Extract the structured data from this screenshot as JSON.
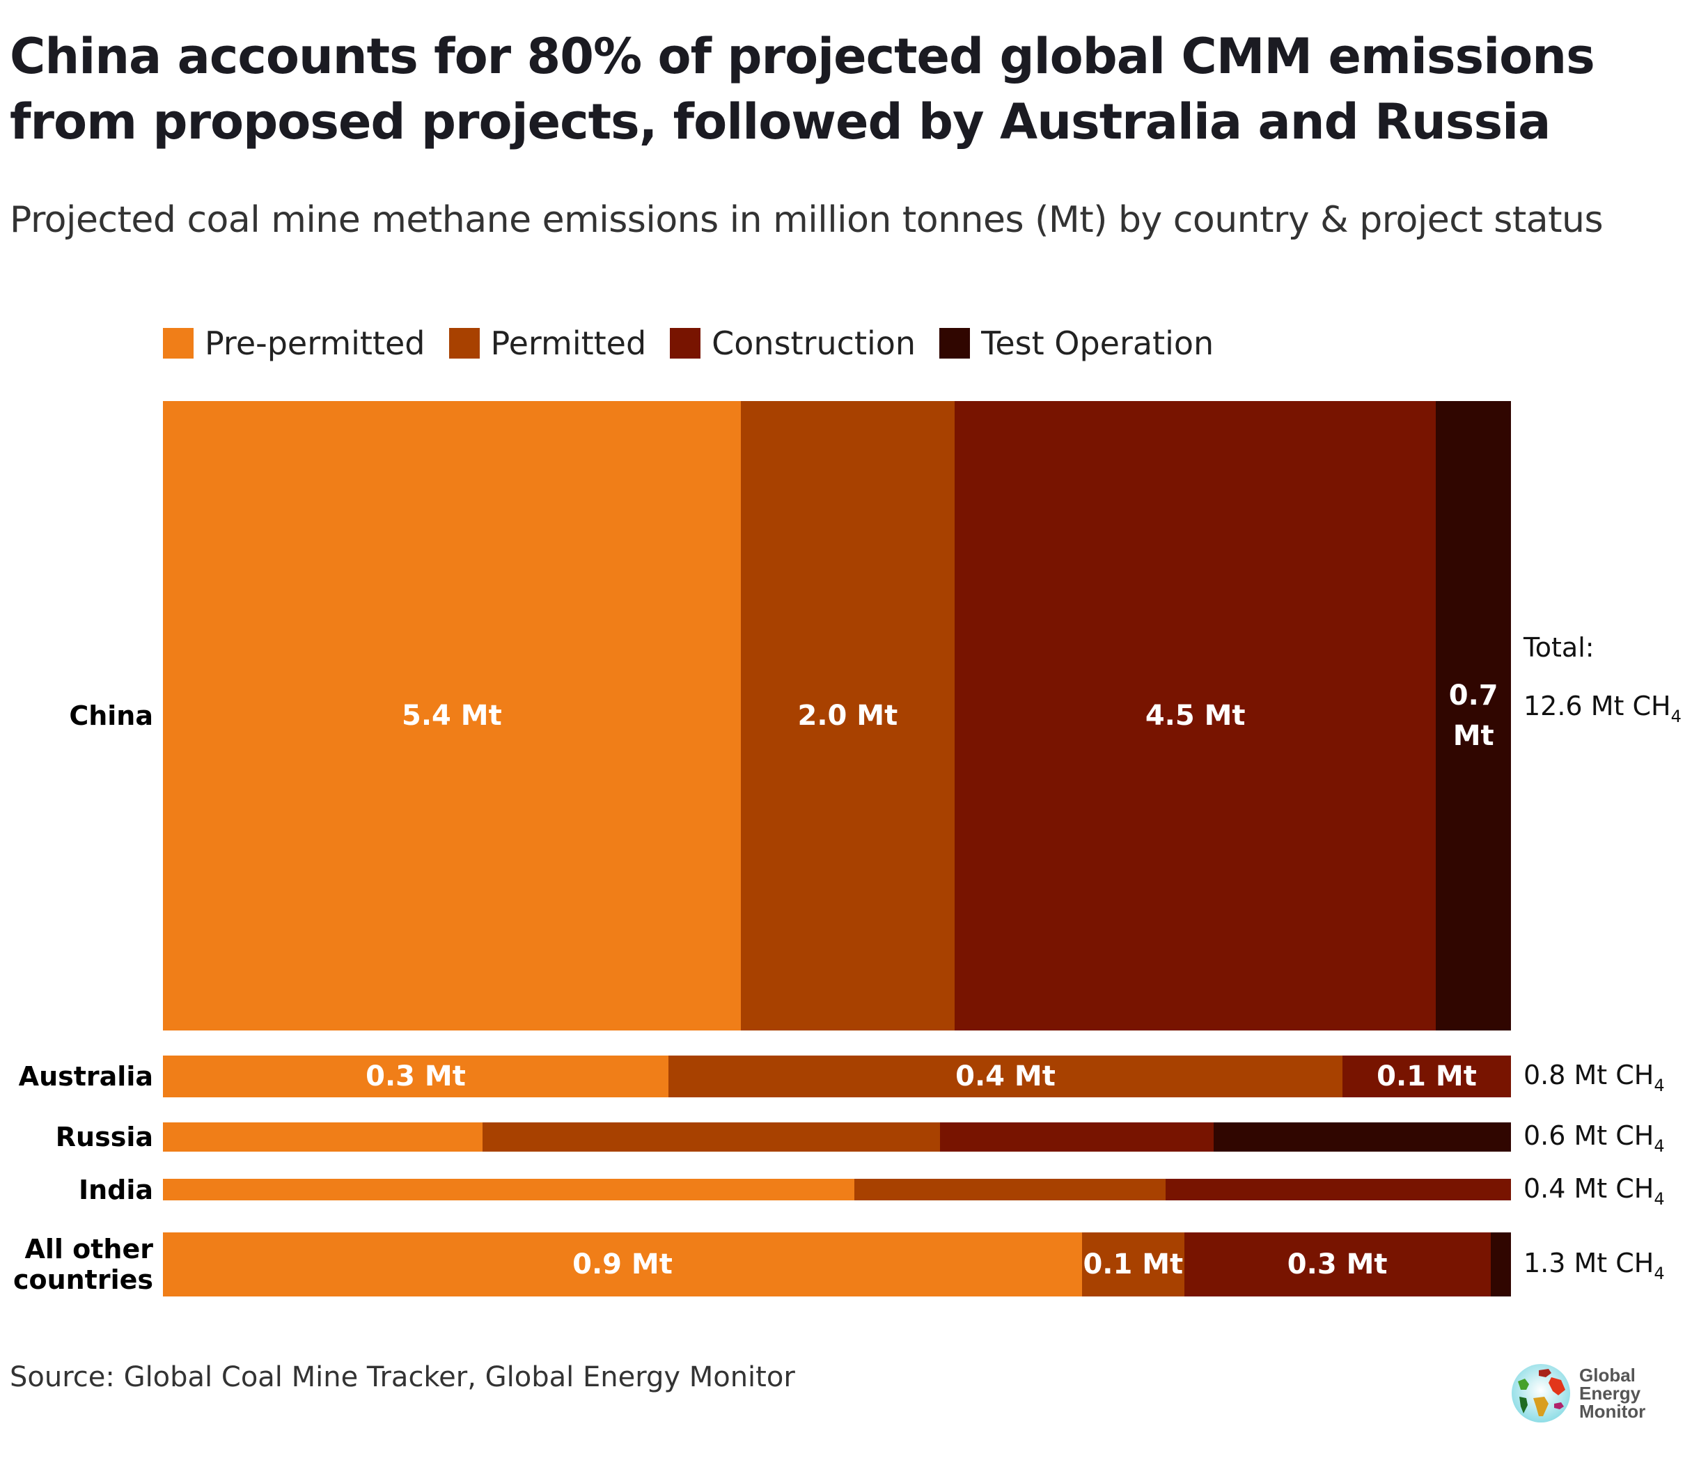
{
  "title": "China accounts for 80% of projected global CMM emissions from proposed projects, followed by Australia and Russia",
  "subtitle": "Projected coal mine methane emissions in million tonnes (Mt) by country & project status",
  "source": "Source: Global Coal Mine Tracker, Global Energy Monitor",
  "logo": {
    "line1": "Global",
    "line2": "Energy",
    "line3": "Monitor"
  },
  "total_prefix": "Total:",
  "chart_data": {
    "type": "bar",
    "orientation": "horizontal",
    "stacked": "100%",
    "note": "Each bar is normalized to 100%; bar thickness proportional to country total",
    "title": "China accounts for 80% of projected global CMM emissions from proposed projects, followed by Australia and Russia",
    "subtitle": "Projected coal mine methane emissions in million tonnes (Mt) by country & project status",
    "unit": "Mt CH4",
    "legend_position": "top-left",
    "categories": [
      "China",
      "Australia",
      "Russia",
      "India",
      "All other countries"
    ],
    "category_labels": [
      "China",
      "Australia",
      "Russia",
      "India",
      "All other\ncountries"
    ],
    "totals": [
      12.6,
      0.8,
      0.6,
      0.4,
      1.3
    ],
    "total_labels": [
      "12.6 Mt CH",
      "0.8 Mt CH",
      "0.6 Mt CH",
      "0.4 Mt CH",
      "1.3 Mt CH"
    ],
    "series": [
      {
        "name": "Pre-permitted",
        "color": "#f07e18",
        "values": [
          5.4,
          0.3,
          0.14,
          0.2,
          0.9
        ],
        "labels": [
          "5.4 Mt",
          "0.3 Mt",
          "",
          "",
          "0.9 Mt"
        ]
      },
      {
        "name": "Permitted",
        "color": "#a84100",
        "values": [
          2.0,
          0.4,
          0.2,
          0.09,
          0.1
        ],
        "labels": [
          "2.0 Mt",
          "0.4 Mt",
          "",
          "",
          "0.1 Mt"
        ]
      },
      {
        "name": "Construction",
        "color": "#781400",
        "values": [
          4.5,
          0.1,
          0.12,
          0.1,
          0.3
        ],
        "labels": [
          "4.5 Mt",
          "0.1 Mt",
          "",
          "",
          "0.3 Mt"
        ]
      },
      {
        "name": "Test Operation",
        "color": "#300600",
        "values": [
          0.7,
          0.0,
          0.13,
          0.0,
          0.02
        ],
        "labels": [
          "0.7\nMt",
          "",
          "",
          "",
          ""
        ]
      }
    ]
  }
}
